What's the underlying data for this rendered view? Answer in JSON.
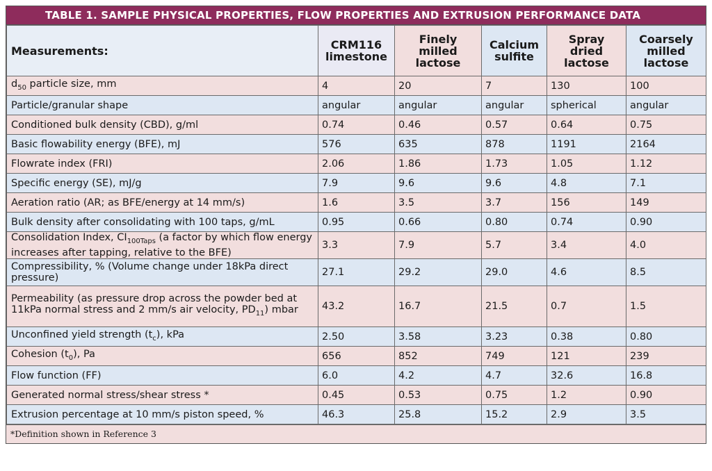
{
  "title": "TABLE 1.  SAMPLE PHYSICAL PROPERTIES, FLOW PROPERTIES AND EXTRUSION PERFORMANCE DATA",
  "header": {
    "measurements": "Measurements:",
    "columns": [
      "CRM116 limestone",
      "Finely milled lactose",
      "Calcium sulfite",
      "Spray dried lactose",
      "Coarsely milled lactose"
    ]
  },
  "rows": [
    {
      "label_main": "d",
      "label_sub": "50",
      "label_rest": " particle size, mm",
      "values": [
        "4",
        "20",
        "7",
        "130",
        "100"
      ]
    },
    {
      "label": "Particle/granular shape",
      "values": [
        "angular",
        "angular",
        "angular",
        "spherical",
        "angular"
      ]
    },
    {
      "label": "Conditioned bulk density (CBD), g/ml",
      "values": [
        "0.74",
        "0.46",
        "0.57",
        "0.64",
        "0.75"
      ]
    },
    {
      "label": "Basic flowability energy (BFE), mJ",
      "values": [
        "576",
        "635",
        "878",
        "1191",
        "2164"
      ]
    },
    {
      "label": "Flowrate index (FRI)",
      "values": [
        " 2.06",
        "1.86",
        "1.73",
        "1.05",
        "1.12"
      ]
    },
    {
      "label": "Specific energy (SE), mJ/g",
      "values": [
        " 7.9",
        " 9.6",
        "9.6",
        "4.8",
        "7.1"
      ]
    },
    {
      "label": "Aeration ratio (AR; as BFE/energy at 14 mm/s)",
      "values": [
        "1.6",
        "3.5",
        "3.7",
        "156",
        "149"
      ]
    },
    {
      "label": "Bulk density after consolidating with 100 taps, g/mL",
      "values": [
        "0.95",
        "  0.66",
        "0.80",
        "0.74",
        "0.90"
      ]
    },
    {
      "label_main": "Consolidation Index, CI",
      "label_sub": "100Taps",
      "label_rest": " (a factor by which flow energy increases after tapping, relative to the BFE)",
      "values": [
        "3.3",
        "7.9",
        "5.7",
        "3.4",
        "4.0"
      ]
    },
    {
      "label": "Compressibility, % (Volume change under 18kPa direct pressure)",
      "values": [
        "27.1",
        "29.2",
        "29.0",
        "4.6",
        "8.5"
      ]
    },
    {
      "label_main": "Permeability (as pressure drop across the powder bed at 11kPa normal stress and 2 mm/s air velocity, PD",
      "label_sub": "11",
      "label_rest": ") mbar",
      "values": [
        "43.2",
        "16.7",
        "21.5",
        "0.7",
        "1.5"
      ]
    },
    {
      "label_main": "Unconfined yield strength (t",
      "label_sub": "c",
      "label_rest": "), kPa",
      "values": [
        "2.50",
        "3.58",
        "3.23",
        "0.38",
        "0.80"
      ]
    },
    {
      "label_main": "Cohesion (t",
      "label_sub": "0",
      "label_rest": "), Pa",
      "values": [
        "656",
        "852",
        "749",
        "121",
        "239"
      ]
    },
    {
      "label": "Flow function (FF)",
      "values": [
        "6.0",
        "4.2",
        "4.7",
        "32.6",
        "16.8"
      ]
    },
    {
      "label": "Generated normal stress/shear stress *",
      "values": [
        "0.45",
        "0.53",
        "0.75",
        "1.2",
        "0.90"
      ]
    },
    {
      "label": "Extrusion percentage at 10 mm/s piston speed, %",
      "values": [
        "46.3",
        "25.8",
        "15.2",
        "2.9",
        "3.5"
      ]
    }
  ],
  "footnote": "*Definition shown in Reference 3",
  "colors": {
    "title_bg": "#8e2c5c",
    "row_pink": "#f2dede",
    "row_blue": "#dde7f3"
  }
}
